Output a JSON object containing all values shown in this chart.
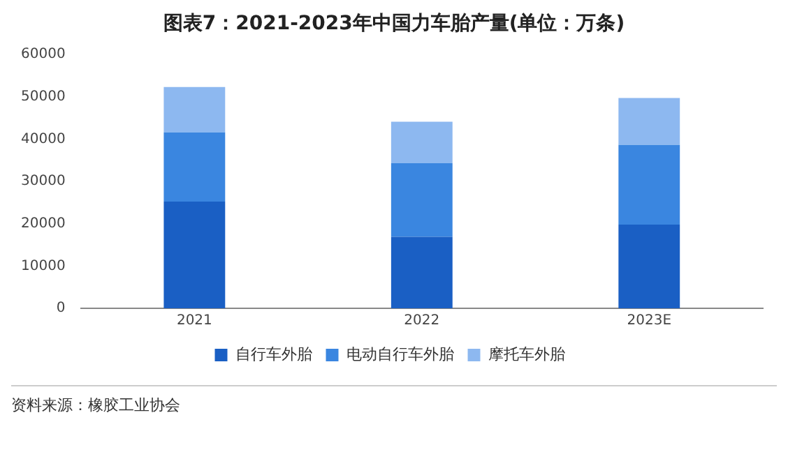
{
  "chart_data": {
    "type": "bar",
    "title": "图表7：2021-2023年中国力车胎产量(单位：万条)",
    "categories": [
      "2021",
      "2022",
      "2023E"
    ],
    "stacked": true,
    "series": [
      {
        "name": "自行车外胎",
        "color": "#1a5fc4",
        "values": [
          25200,
          16900,
          19800
        ]
      },
      {
        "name": "电动自行车外胎",
        "color": "#3a86e0",
        "values": [
          16400,
          17400,
          18800
        ]
      },
      {
        "name": "摩托车外胎",
        "color": "#8db8f0",
        "values": [
          10700,
          9800,
          11100
        ]
      }
    ],
    "ylim": [
      0,
      60000
    ],
    "yticks": [
      0,
      10000,
      20000,
      30000,
      40000,
      50000,
      60000
    ],
    "grid": false,
    "legend": "bottom",
    "annotations": [
      "资料来源：橡胶工业协会"
    ]
  }
}
